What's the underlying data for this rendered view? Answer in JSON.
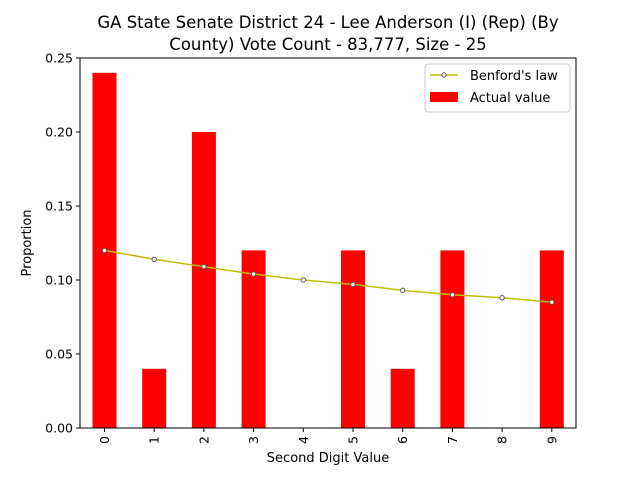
{
  "chart_data": {
    "type": "bar",
    "title_lines": [
      "GA State Senate District 24 - Lee Anderson (I) (Rep) (By",
      "County) Vote Count - 83,777, Size - 25"
    ],
    "xlabel": "Second Digit Value",
    "ylabel": "Proportion",
    "categories": [
      "0",
      "1",
      "2",
      "3",
      "4",
      "5",
      "6",
      "7",
      "8",
      "9"
    ],
    "ylim": [
      0,
      0.25
    ],
    "yticks": [
      "0.00",
      "0.05",
      "0.10",
      "0.15",
      "0.20",
      "0.25"
    ],
    "grid": false,
    "legend_position": "top-right",
    "series": [
      {
        "name": "Benford's law",
        "kind": "line",
        "color": "#bfbf00",
        "values": [
          0.12,
          0.114,
          0.109,
          0.104,
          0.1,
          0.097,
          0.093,
          0.09,
          0.088,
          0.085
        ]
      },
      {
        "name": "Actual value",
        "kind": "bar",
        "color": "#ff0000",
        "values": [
          0.24,
          0.04,
          0.2,
          0.12,
          0.0,
          0.12,
          0.04,
          0.12,
          0.0,
          0.12
        ]
      }
    ]
  }
}
